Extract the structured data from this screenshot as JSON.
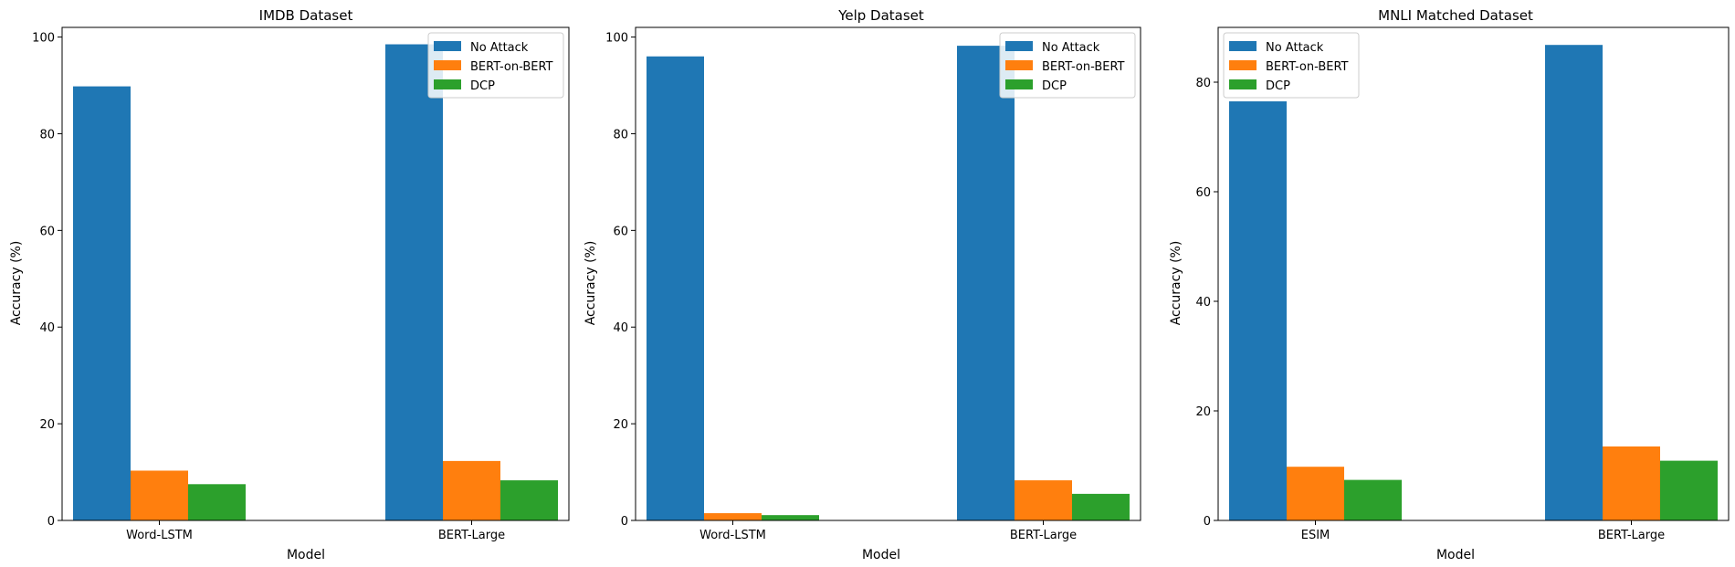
{
  "chart_data": [
    {
      "type": "bar",
      "title": "IMDB Dataset",
      "xlabel": "Model",
      "ylabel": "Accuracy (%)",
      "categories": [
        "Word-LSTM",
        "BERT-Large"
      ],
      "ylim": [
        0,
        102
      ],
      "yticks": [
        0,
        20,
        40,
        60,
        80,
        100
      ],
      "series": [
        {
          "name": "No Attack",
          "color": "#1f77b4",
          "values": [
            89.8,
            98.5
          ]
        },
        {
          "name": "BERT-on-BERT",
          "color": "#ff7f0e",
          "values": [
            10.3,
            12.3
          ]
        },
        {
          "name": "DCP",
          "color": "#2ca02c",
          "values": [
            7.5,
            8.3
          ]
        }
      ],
      "legend": "upper right",
      "grid": false
    },
    {
      "type": "bar",
      "title": "Yelp Dataset",
      "xlabel": "Model",
      "ylabel": "Accuracy (%)",
      "categories": [
        "Word-LSTM",
        "BERT-Large"
      ],
      "ylim": [
        0,
        102
      ],
      "yticks": [
        0,
        20,
        40,
        60,
        80,
        100
      ],
      "series": [
        {
          "name": "No Attack",
          "color": "#1f77b4",
          "values": [
            96.0,
            98.2
          ]
        },
        {
          "name": "BERT-on-BERT",
          "color": "#ff7f0e",
          "values": [
            1.5,
            8.3
          ]
        },
        {
          "name": "DCP",
          "color": "#2ca02c",
          "values": [
            1.1,
            5.5
          ]
        }
      ],
      "legend": "upper right",
      "grid": false
    },
    {
      "type": "bar",
      "title": "MNLI Matched Dataset",
      "xlabel": "Model",
      "ylabel": "Accuracy (%)",
      "categories": [
        "ESIM",
        "BERT-Large"
      ],
      "ylim": [
        0,
        90
      ],
      "yticks": [
        0,
        20,
        40,
        60,
        80
      ],
      "series": [
        {
          "name": "No Attack",
          "color": "#1f77b4",
          "values": [
            76.5,
            86.8
          ]
        },
        {
          "name": "BERT-on-BERT",
          "color": "#ff7f0e",
          "values": [
            9.8,
            13.5
          ]
        },
        {
          "name": "DCP",
          "color": "#2ca02c",
          "values": [
            7.4,
            10.9
          ]
        }
      ],
      "legend": "upper left",
      "grid": false
    }
  ]
}
